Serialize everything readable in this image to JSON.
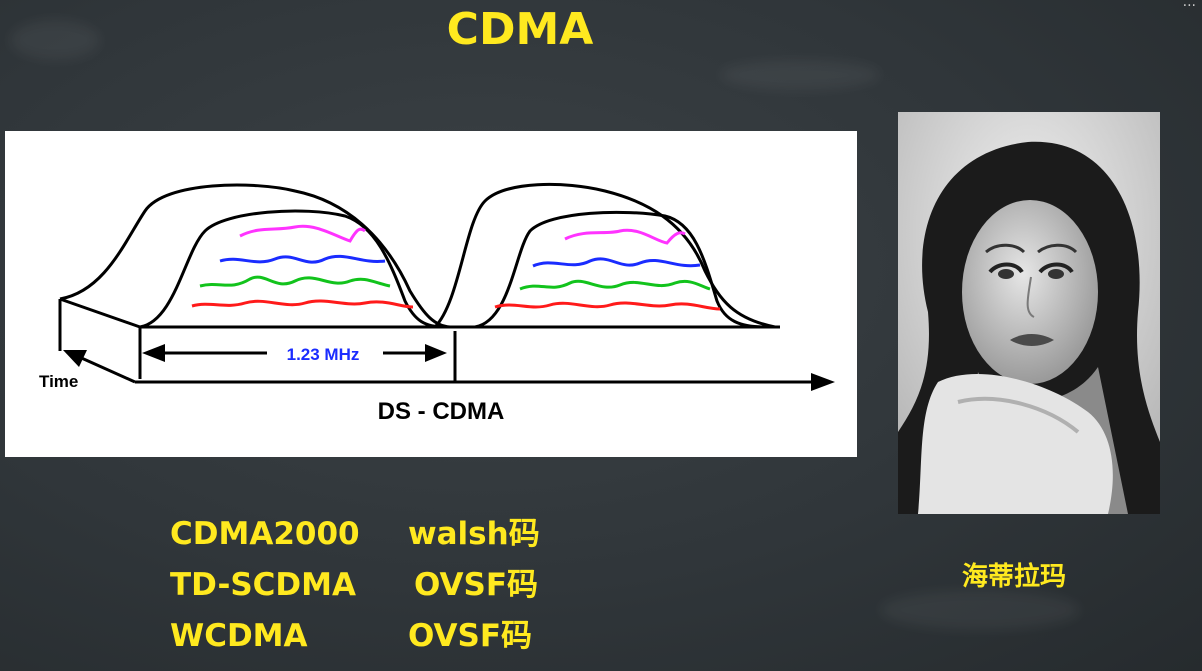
{
  "slide": {
    "title": "CDMA",
    "caption": "海蒂拉玛",
    "corner_mark": "..."
  },
  "figure": {
    "bandwidth_label": "1.23 MHz",
    "time_label": "Time",
    "axis_label": "DS - CDMA",
    "trace_colors": [
      "#ff33ff",
      "#1a2cff",
      "#12c31c",
      "#ff1a1a"
    ],
    "label_color": "#1a2cff"
  },
  "codes": [
    {
      "standard": "CDMA2000",
      "code": "walsh码"
    },
    {
      "standard": "TD-SCDMA",
      "code": "OVSF码"
    },
    {
      "standard": "WCDMA",
      "code": "OVSF码"
    }
  ]
}
